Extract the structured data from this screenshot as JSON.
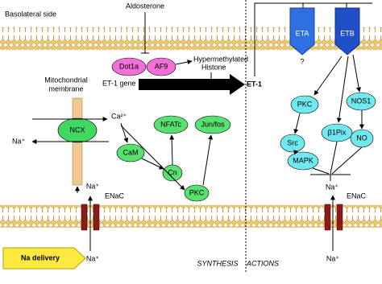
{
  "regions": {
    "basolateral": "Basolateral side",
    "synthesis": "SYNTHESIS",
    "actions": "ACTIONS",
    "mito": [
      "Mitochondrial",
      "membrane"
    ]
  },
  "nodes": {
    "aldosterone": "Aldosterone",
    "dot1a": "Dot1a",
    "af9": "AF9",
    "histone": [
      "Hypermethylated",
      "Histone"
    ],
    "gene": "ET-1 gene",
    "et1": "ET-1",
    "eta": "ETA",
    "etb": "ETB",
    "question": "?",
    "pkc_right": "PKC",
    "src": "Src",
    "mapk": "MAPK",
    "b1pix": "β1Pix",
    "nos1": "NOS1",
    "no": "NO",
    "ncx": "NCX",
    "ca": "Ca²⁺",
    "na_left": "Na⁺",
    "cam": "CaM",
    "cn": "Cn",
    "pkc_left": "PKC",
    "nfatc": "NFATc",
    "junfos": "Jun/fos",
    "enac_left": "ENaC",
    "na_enac_left_in": "Na⁺",
    "na_enac_left_out": "Na⁺",
    "enac_right": "ENaC",
    "na_enac_right_in": "Na⁺",
    "na_enac_right_out": "Na⁺",
    "na_delivery": "Na delivery"
  }
}
